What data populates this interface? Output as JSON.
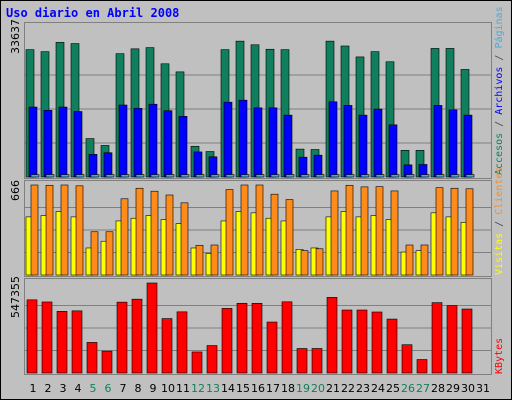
{
  "chart_data": [
    {
      "panel": "accesses",
      "type": "bar",
      "title": "Uso diario en Abril 2008",
      "scale_label": "33637",
      "ylim": [
        0,
        33637
      ],
      "categories": [
        "1",
        "2",
        "3",
        "4",
        "5",
        "6",
        "7",
        "8",
        "9",
        "10",
        "11",
        "12",
        "13",
        "14",
        "15",
        "16",
        "17",
        "18",
        "19",
        "20",
        "21",
        "22",
        "23",
        "24",
        "25",
        "26",
        "27",
        "28",
        "29",
        "30",
        "31"
      ],
      "weekend_days": [
        "5",
        "6",
        "12",
        "13",
        "19",
        "20",
        "26",
        "27"
      ],
      "series": [
        {
          "name": "Accesos",
          "color": "#107f5e",
          "values": [
            31500,
            31000,
            33300,
            33000,
            9500,
            7800,
            30500,
            31700,
            32000,
            28000,
            26000,
            7600,
            6300,
            31500,
            33600,
            32700,
            31600,
            31500,
            6900,
            6800,
            33600,
            32400,
            29700,
            31000,
            28500,
            6600,
            6600,
            31800,
            31800,
            26600,
            0
          ]
        },
        {
          "name": "Archivos",
          "color": "#0000ff",
          "values": [
            17300,
            16500,
            17300,
            16200,
            5600,
            6000,
            17800,
            17000,
            18000,
            16400,
            15000,
            6200,
            5000,
            18500,
            19000,
            17100,
            17100,
            15300,
            4900,
            5400,
            18600,
            17700,
            15300,
            16800,
            12900,
            3000,
            3100,
            17700,
            16600,
            15300,
            0
          ]
        },
        {
          "name": "Páginas",
          "color": "#4fa8d6",
          "values": [
            600,
            600,
            600,
            600,
            600,
            600,
            600,
            600,
            600,
            600,
            600,
            600,
            600,
            600,
            600,
            600,
            600,
            600,
            600,
            600,
            600,
            600,
            600,
            600,
            600,
            600,
            600,
            600,
            600,
            600,
            0
          ]
        }
      ]
    },
    {
      "panel": "visits",
      "type": "bar",
      "scale_label": "666",
      "ylim": [
        0,
        666
      ],
      "categories": [
        "1",
        "2",
        "3",
        "4",
        "5",
        "6",
        "7",
        "8",
        "9",
        "10",
        "11",
        "12",
        "13",
        "14",
        "15",
        "16",
        "17",
        "18",
        "19",
        "20",
        "21",
        "22",
        "23",
        "24",
        "25",
        "26",
        "27",
        "28",
        "29",
        "30",
        "31"
      ],
      "series": [
        {
          "name": "Visitas",
          "color": "#ffff00",
          "values": [
            430,
            440,
            470,
            430,
            200,
            250,
            400,
            420,
            440,
            410,
            380,
            200,
            160,
            400,
            470,
            460,
            420,
            400,
            190,
            200,
            430,
            470,
            430,
            440,
            410,
            170,
            180,
            460,
            430,
            390,
            0
          ]
        },
        {
          "name": "Clientes",
          "color": "#ff8c1a",
          "values": [
            666,
            664,
            666,
            660,
            320,
            320,
            564,
            642,
            620,
            592,
            534,
            220,
            222,
            632,
            666,
            666,
            598,
            558,
            180,
            194,
            622,
            664,
            652,
            654,
            622,
            222,
            222,
            646,
            642,
            638,
            0
          ]
        }
      ]
    },
    {
      "panel": "kbytes",
      "type": "bar",
      "scale_label": "547355",
      "ylim": [
        0,
        547355
      ],
      "categories": [
        "1",
        "2",
        "3",
        "4",
        "5",
        "6",
        "7",
        "8",
        "9",
        "10",
        "11",
        "12",
        "13",
        "14",
        "15",
        "16",
        "17",
        "18",
        "19",
        "20",
        "21",
        "22",
        "23",
        "24",
        "25",
        "26",
        "27",
        "28",
        "29",
        "30",
        "31"
      ],
      "series": [
        {
          "name": "KBytes",
          "color": "#ff0000",
          "values": [
            445000,
            432000,
            375000,
            378000,
            186000,
            133000,
            431000,
            449000,
            547355,
            331000,
            372000,
            128000,
            167000,
            393000,
            424000,
            424000,
            310000,
            433000,
            149000,
            149000,
            460000,
            383000,
            383000,
            371000,
            328000,
            172000,
            82000,
            428000,
            410000,
            389000,
            0
          ]
        }
      ]
    }
  ],
  "side_labels": {
    "panel1": [
      {
        "text": "Accesos",
        "color": "#107f5e"
      },
      {
        "text": "/",
        "color": "#444444"
      },
      {
        "text": "Archivos",
        "color": "#0000ff"
      },
      {
        "text": "/",
        "color": "#444444"
      },
      {
        "text": "Páginas",
        "color": "#4fa8d6"
      }
    ],
    "panel2": [
      {
        "text": "Visitas",
        "color": "#ffff00"
      },
      {
        "text": "/",
        "color": "#444444"
      },
      {
        "text": "Clientes",
        "color": "#ff8c1a"
      }
    ],
    "panel3": [
      {
        "text": "KBytes",
        "color": "#ff0000"
      }
    ]
  },
  "colors": {
    "background": "#c0c0c0",
    "title": "#0000ff",
    "weekday_label": "#000000",
    "weekend_label": "#107f5e",
    "grid": "#808080"
  }
}
